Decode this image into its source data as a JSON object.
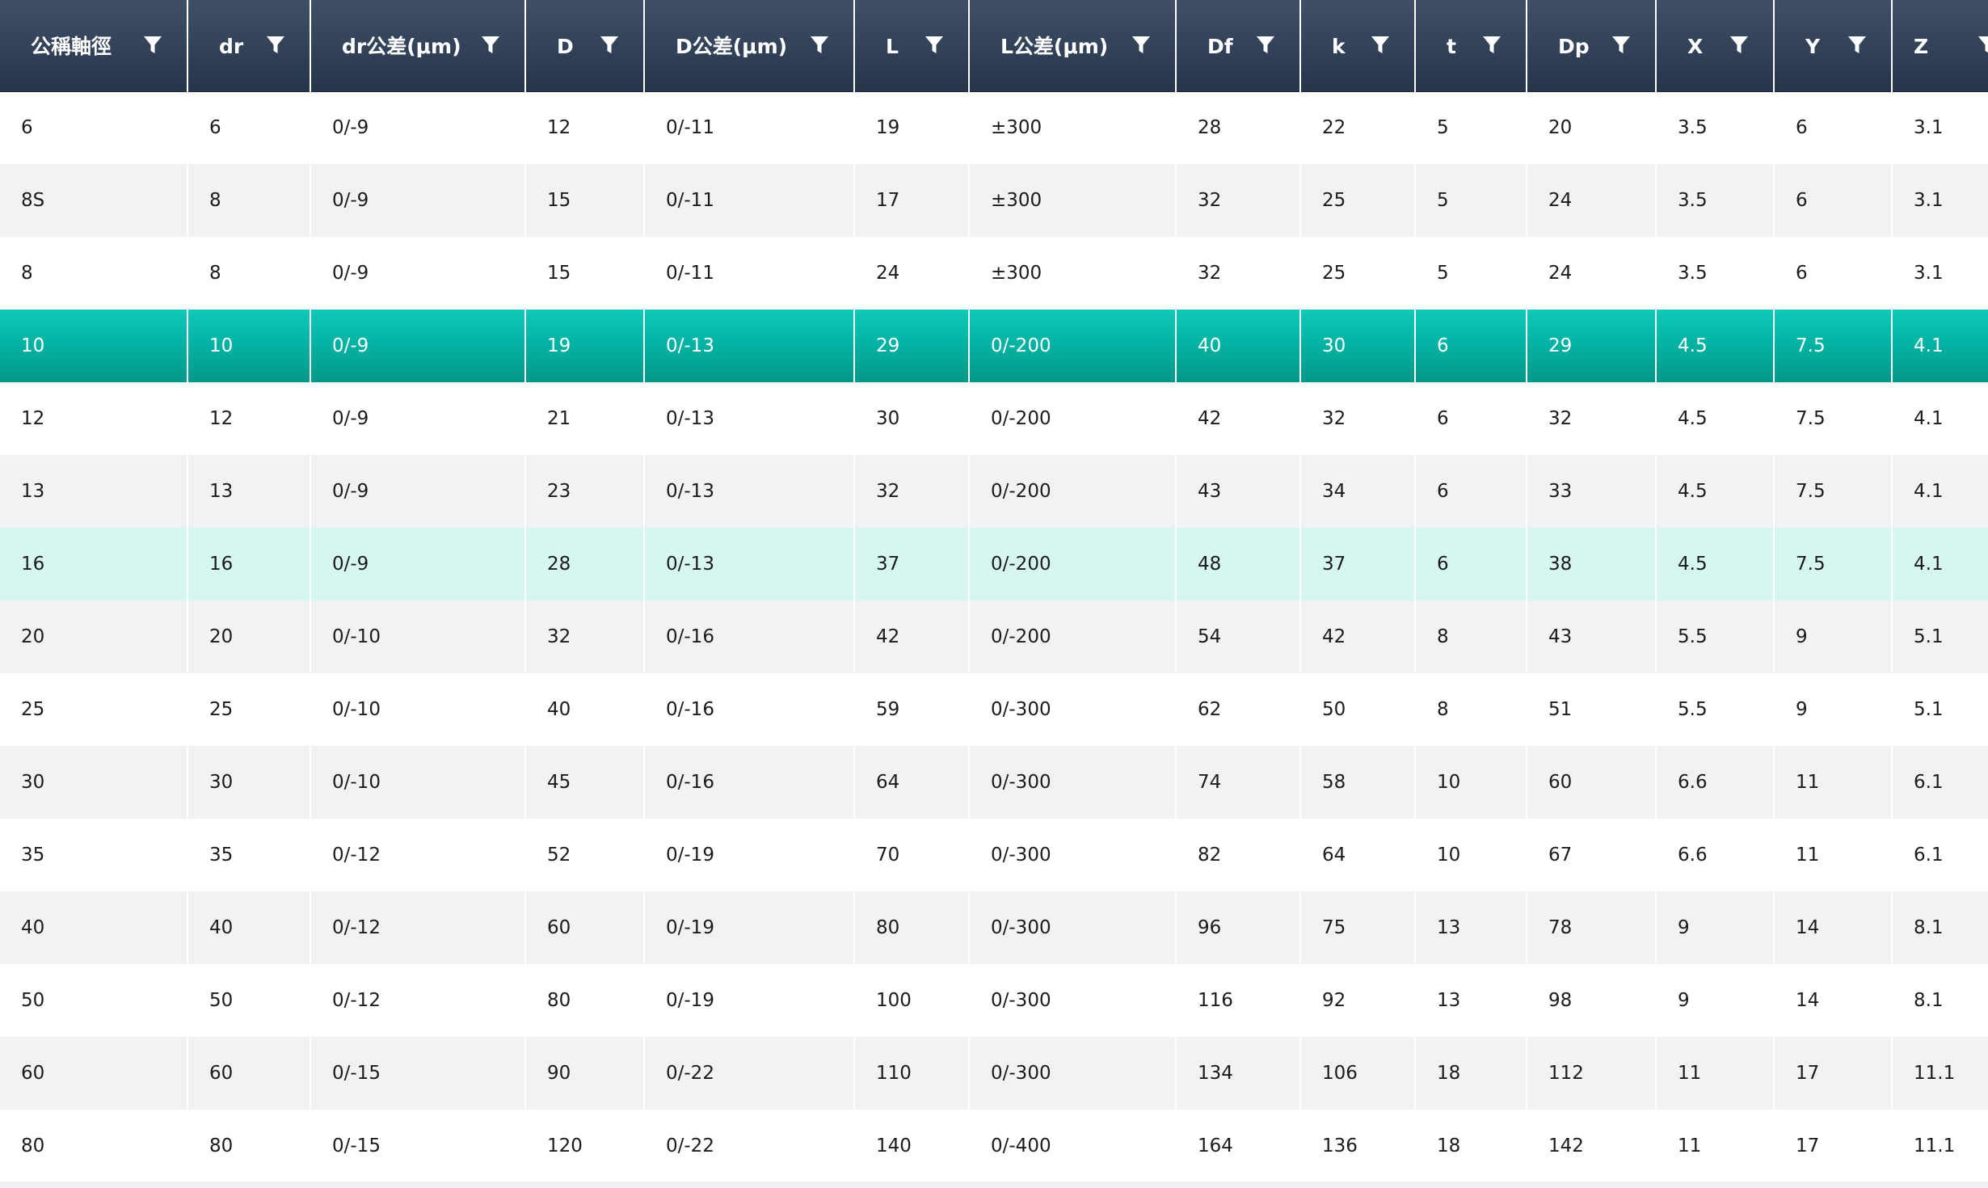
{
  "table": {
    "accent_color": "#03b4a4",
    "hover_color": "#d6f6f1",
    "header_color": "#34445a",
    "filter_icon": "filter-funnel-icon",
    "columns": [
      {
        "label": "公稱軸徑"
      },
      {
        "label": "dr"
      },
      {
        "label": "dr公差(μm)"
      },
      {
        "label": "D"
      },
      {
        "label": "D公差(μm)"
      },
      {
        "label": "L"
      },
      {
        "label": "L公差(μm)"
      },
      {
        "label": "Df"
      },
      {
        "label": "k"
      },
      {
        "label": "t"
      },
      {
        "label": "Dp"
      },
      {
        "label": "X"
      },
      {
        "label": "Y"
      },
      {
        "label": "Z"
      }
    ],
    "rows": [
      {
        "state": "normal",
        "cells": [
          "6",
          "6",
          "0/-9",
          "12",
          "0/-11",
          "19",
          "±300",
          "28",
          "22",
          "5",
          "20",
          "3.5",
          "6",
          "3.1"
        ]
      },
      {
        "state": "normal",
        "cells": [
          "8S",
          "8",
          "0/-9",
          "15",
          "0/-11",
          "17",
          "±300",
          "32",
          "25",
          "5",
          "24",
          "3.5",
          "6",
          "3.1"
        ]
      },
      {
        "state": "normal",
        "cells": [
          "8",
          "8",
          "0/-9",
          "15",
          "0/-11",
          "24",
          "±300",
          "32",
          "25",
          "5",
          "24",
          "3.5",
          "6",
          "3.1"
        ]
      },
      {
        "state": "selected",
        "cells": [
          "10",
          "10",
          "0/-9",
          "19",
          "0/-13",
          "29",
          "0/-200",
          "40",
          "30",
          "6",
          "29",
          "4.5",
          "7.5",
          "4.1"
        ]
      },
      {
        "state": "normal",
        "cells": [
          "12",
          "12",
          "0/-9",
          "21",
          "0/-13",
          "30",
          "0/-200",
          "42",
          "32",
          "6",
          "32",
          "4.5",
          "7.5",
          "4.1"
        ]
      },
      {
        "state": "normal",
        "cells": [
          "13",
          "13",
          "0/-9",
          "23",
          "0/-13",
          "32",
          "0/-200",
          "43",
          "34",
          "6",
          "33",
          "4.5",
          "7.5",
          "4.1"
        ]
      },
      {
        "state": "hover",
        "cells": [
          "16",
          "16",
          "0/-9",
          "28",
          "0/-13",
          "37",
          "0/-200",
          "48",
          "37",
          "6",
          "38",
          "4.5",
          "7.5",
          "4.1"
        ]
      },
      {
        "state": "normal",
        "cells": [
          "20",
          "20",
          "0/-10",
          "32",
          "0/-16",
          "42",
          "0/-200",
          "54",
          "42",
          "8",
          "43",
          "5.5",
          "9",
          "5.1"
        ]
      },
      {
        "state": "normal",
        "cells": [
          "25",
          "25",
          "0/-10",
          "40",
          "0/-16",
          "59",
          "0/-300",
          "62",
          "50",
          "8",
          "51",
          "5.5",
          "9",
          "5.1"
        ]
      },
      {
        "state": "normal",
        "cells": [
          "30",
          "30",
          "0/-10",
          "45",
          "0/-16",
          "64",
          "0/-300",
          "74",
          "58",
          "10",
          "60",
          "6.6",
          "11",
          "6.1"
        ]
      },
      {
        "state": "normal",
        "cells": [
          "35",
          "35",
          "0/-12",
          "52",
          "0/-19",
          "70",
          "0/-300",
          "82",
          "64",
          "10",
          "67",
          "6.6",
          "11",
          "6.1"
        ]
      },
      {
        "state": "normal",
        "cells": [
          "40",
          "40",
          "0/-12",
          "60",
          "0/-19",
          "80",
          "0/-300",
          "96",
          "75",
          "13",
          "78",
          "9",
          "14",
          "8.1"
        ]
      },
      {
        "state": "normal",
        "cells": [
          "50",
          "50",
          "0/-12",
          "80",
          "0/-19",
          "100",
          "0/-300",
          "116",
          "92",
          "13",
          "98",
          "9",
          "14",
          "8.1"
        ]
      },
      {
        "state": "normal",
        "cells": [
          "60",
          "60",
          "0/-15",
          "90",
          "0/-22",
          "110",
          "0/-300",
          "134",
          "106",
          "18",
          "112",
          "11",
          "17",
          "11.1"
        ]
      },
      {
        "state": "normal",
        "cells": [
          "80",
          "80",
          "0/-15",
          "120",
          "0/-22",
          "140",
          "0/-400",
          "164",
          "136",
          "18",
          "142",
          "11",
          "17",
          "11.1"
        ]
      }
    ]
  }
}
